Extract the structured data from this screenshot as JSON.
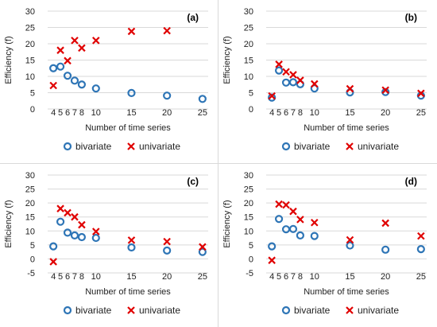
{
  "colors": {
    "bivariate": "#2e75b6",
    "univariate": "#e00000",
    "grid": "#d9d9d9",
    "axis": "#bfbfbf"
  },
  "chart_data": [
    {
      "type": "scatter",
      "title": "",
      "panel_label": "(a)",
      "xlabel": "Number of time series",
      "ylabel": "Efficiency (f)",
      "xticks": [
        4,
        5,
        6,
        7,
        8,
        10,
        15,
        20,
        25
      ],
      "yticks": [
        0,
        5,
        10,
        15,
        20,
        25,
        30
      ],
      "ylim": [
        0,
        30
      ],
      "grid": true,
      "legend": "bottom",
      "series": [
        {
          "name": "bivariate",
          "marker": "circle",
          "x": [
            4,
            5,
            6,
            7,
            8,
            10,
            15,
            20,
            25
          ],
          "y": [
            12.5,
            13,
            10.2,
            8.7,
            7.5,
            6.3,
            4.9,
            4.1,
            3.1
          ]
        },
        {
          "name": "univariate",
          "marker": "x",
          "x": [
            4,
            5,
            6,
            7,
            8,
            10,
            15,
            20
          ],
          "y": [
            7.2,
            18,
            14.8,
            21,
            18.7,
            21,
            23.8,
            24
          ]
        }
      ]
    },
    {
      "type": "scatter",
      "title": "",
      "panel_label": "(b)",
      "xlabel": "Number of time series",
      "ylabel": "Efficiency (f)",
      "xticks": [
        4,
        5,
        6,
        7,
        8,
        10,
        15,
        20,
        25
      ],
      "yticks": [
        0,
        5,
        10,
        15,
        20,
        25,
        30
      ],
      "ylim": [
        0,
        30
      ],
      "grid": true,
      "legend": "bottom",
      "series": [
        {
          "name": "bivariate",
          "marker": "circle",
          "x": [
            4,
            5,
            6,
            7,
            8,
            10,
            15,
            20,
            25
          ],
          "y": [
            3.5,
            11.8,
            8.1,
            8.2,
            7.6,
            6.3,
            5.1,
            5.2,
            4.1
          ]
        },
        {
          "name": "univariate",
          "marker": "x",
          "x": [
            4,
            5,
            6,
            7,
            8,
            10,
            15,
            20,
            25
          ],
          "y": [
            4,
            13.7,
            11.4,
            10.5,
            8.8,
            7.7,
            6.2,
            5.8,
            4.8
          ]
        }
      ]
    },
    {
      "type": "scatter",
      "title": "",
      "panel_label": "(c)",
      "xlabel": "Number of time series",
      "ylabel": "Efficiency (f)",
      "xticks": [
        4,
        5,
        6,
        7,
        8,
        10,
        15,
        20,
        25
      ],
      "yticks": [
        -5,
        0,
        5,
        10,
        15,
        20,
        25,
        30
      ],
      "ylim": [
        -5,
        30
      ],
      "grid": true,
      "legend": "bottom",
      "series": [
        {
          "name": "bivariate",
          "marker": "circle",
          "x": [
            4,
            5,
            6,
            7,
            8,
            10,
            15,
            20,
            25
          ],
          "y": [
            4.5,
            13.3,
            9.4,
            8.4,
            7.8,
            7.5,
            4.1,
            3,
            2.5
          ]
        },
        {
          "name": "univariate",
          "marker": "x",
          "x": [
            4,
            5,
            6,
            7,
            8,
            10,
            15,
            20,
            25
          ],
          "y": [
            -1,
            18,
            16.5,
            15,
            12.2,
            9.8,
            6.7,
            6.2,
            4.3
          ]
        }
      ]
    },
    {
      "type": "scatter",
      "title": "",
      "panel_label": "(d)",
      "xlabel": "Number of time series",
      "ylabel": "Efficiency (f)",
      "xticks": [
        4,
        5,
        6,
        7,
        8,
        10,
        15,
        20,
        25
      ],
      "yticks": [
        -5,
        0,
        5,
        10,
        15,
        20,
        25,
        30
      ],
      "ylim": [
        -5,
        30
      ],
      "grid": true,
      "legend": "bottom",
      "series": [
        {
          "name": "bivariate",
          "marker": "circle",
          "x": [
            4,
            5,
            6,
            7,
            8,
            10,
            15,
            20,
            25
          ],
          "y": [
            4.5,
            14.3,
            10.6,
            10.7,
            8.4,
            8.2,
            4.8,
            3.3,
            3.5
          ]
        },
        {
          "name": "univariate",
          "marker": "x",
          "x": [
            4,
            5,
            6,
            7,
            8,
            10,
            15,
            20,
            25
          ],
          "y": [
            -0.5,
            19.6,
            19.3,
            17,
            14.1,
            13,
            6.8,
            12.8,
            8.2
          ]
        }
      ]
    }
  ]
}
